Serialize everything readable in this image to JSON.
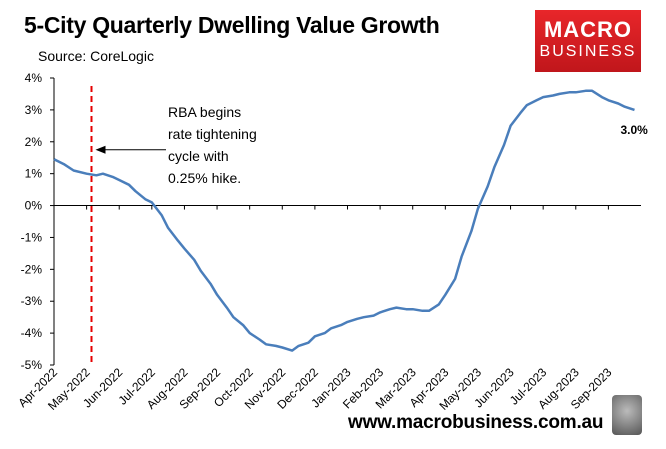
{
  "header": {
    "title": "5-City Quarterly Dwelling Value Growth",
    "source": "Source: CoreLogic"
  },
  "logo": {
    "line1": "MACRO",
    "line2": "BUSINESS"
  },
  "footer": {
    "website": "www.macrobusiness.com.au"
  },
  "colors": {
    "series": "#4a7ebb",
    "marker_line": "#e60000",
    "logo_red": "#d71f25"
  },
  "chart_data": {
    "type": "line",
    "title": "5-City Quarterly Dwelling Value Growth",
    "y_ticks": [
      "4%",
      "3%",
      "2%",
      "1%",
      "0%",
      "-1%",
      "-2%",
      "-3%",
      "-4%",
      "-5%"
    ],
    "ylim": [
      -5,
      4
    ],
    "x_ticks": [
      "Apr-2022",
      "May-2022",
      "Jun-2022",
      "Jul-2022",
      "Aug-2022",
      "Sep-2022",
      "Oct-2022",
      "Nov-2022",
      "Dec-2022",
      "Jan-2023",
      "Feb-2023",
      "Mar-2023",
      "Apr-2023",
      "May-2023",
      "Jun-2023",
      "Jul-2023",
      "Aug-2023",
      "Sep-2023"
    ],
    "grid": false,
    "series": [
      {
        "x": [
          0,
          0.3,
          0.6,
          1.0,
          1.3,
          1.5,
          1.8,
          2.0,
          2.3,
          2.5,
          2.8,
          3.0,
          3.3,
          3.5,
          3.8,
          4.0,
          4.3,
          4.5,
          4.8,
          5.0,
          5.3,
          5.5,
          5.8,
          6.0,
          6.3,
          6.5,
          6.8,
          7.0,
          7.3,
          7.5,
          7.8,
          8.0,
          8.3,
          8.5,
          8.8,
          9.0,
          9.3,
          9.5,
          9.8,
          10.0,
          10.3,
          10.5,
          10.8,
          11.0,
          11.3,
          11.5,
          11.8,
          12.0,
          12.3,
          12.5,
          12.8,
          13.0,
          13.3,
          13.5,
          13.8,
          14.0,
          14.3,
          14.5,
          14.8,
          15.0,
          15.3,
          15.5,
          15.8,
          16.0,
          16.3,
          16.5,
          16.8,
          17.0,
          17.3,
          17.5,
          17.8
        ],
        "values": [
          1.45,
          1.3,
          1.1,
          1.0,
          0.95,
          1.0,
          0.9,
          0.8,
          0.65,
          0.45,
          0.2,
          0.1,
          -0.3,
          -0.7,
          -1.1,
          -1.35,
          -1.7,
          -2.05,
          -2.45,
          -2.8,
          -3.2,
          -3.5,
          -3.75,
          -4.0,
          -4.2,
          -4.35,
          -4.4,
          -4.45,
          -4.55,
          -4.4,
          -4.3,
          -4.1,
          -4.0,
          -3.85,
          -3.75,
          -3.65,
          -3.55,
          -3.5,
          -3.45,
          -3.35,
          -3.25,
          -3.2,
          -3.25,
          -3.25,
          -3.3,
          -3.3,
          -3.1,
          -2.8,
          -2.3,
          -1.6,
          -0.8,
          -0.1,
          0.6,
          1.2,
          1.9,
          2.5,
          2.9,
          3.15,
          3.3,
          3.4,
          3.45,
          3.5,
          3.55,
          3.55,
          3.6,
          3.6,
          3.4,
          3.3,
          3.2,
          3.1,
          3.0
        ]
      }
    ],
    "event_marker_x": 1.15,
    "annotation": "RBA begins\nrate tightening\ncycle with\n0.25% hike.",
    "last_value_label": "3.0%"
  }
}
